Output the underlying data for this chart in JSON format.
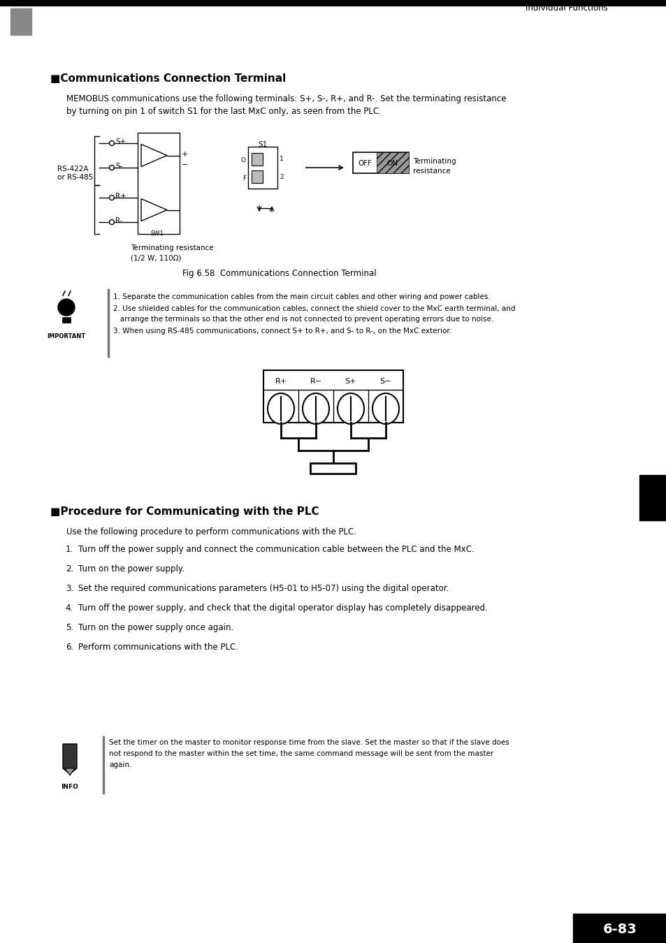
{
  "title_header": "Individual Functions",
  "section1_title": "■Communications Connection Terminal",
  "section1_para1": "MEMOBUS communications use the following terminals: S+, S-, R+, and R-. Set the terminating resistance",
  "section1_para2": "by turning on pin 1 of switch S1 for the last MxC only, as seen from the PLC.",
  "fig_caption": "Fig 6.58  Communications Connection Terminal",
  "important_note1": "1. Separate the communication cables from the main circuit cables and other wiring and power cables.",
  "important_note2": "2. Use shielded cables for the communication cables, connect the shield cover to the MxC earth terminal, and",
  "important_note2b": "   arrange the terminals so that the other end is not connected to prevent operating errors due to noise.",
  "important_note3": "3. When using RS-485 communications, connect S+ to R+, and S- to R-, on the MxC exterior.",
  "section2_title": "■Procedure for Communicating with the PLC",
  "section2_para": "Use the following procedure to perform communications with the PLC.",
  "procedure_steps": [
    "Turn off the power supply and connect the communication cable between the PLC and the MxC.",
    "Turn on the power supply.",
    "Set the required communications parameters (H5-01 to H5-07) using the digital operator.",
    "Turn off the power supply, and check that the digital operator display has completely disappeared.",
    "Turn on the power supply once again.",
    "Perform communications with the PLC."
  ],
  "info_note1": "Set the timer on the master to monitor response time from the slave. Set the master so that if the slave does",
  "info_note2": "not respond to the master within the set time, the same command message will be sent from the master",
  "info_note3": "again.",
  "page_number": "6-83",
  "chapter_number": "6",
  "bg_color": "#ffffff"
}
